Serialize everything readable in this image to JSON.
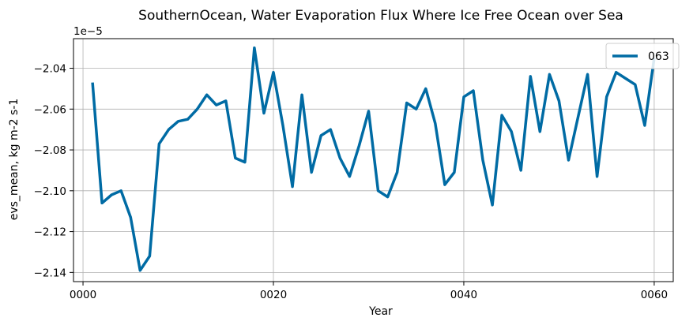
{
  "chart_data": {
    "type": "line",
    "title": "SouthernOcean, Water Evaporation Flux Where Ice Free Ocean over Sea",
    "xlabel": "Year",
    "ylabel": "evs_mean, kg m-2 s-1",
    "offset_label": "1e−5",
    "xlim": [
      -1,
      62
    ],
    "ylim": [
      -2.1445,
      -2.0255
    ],
    "x_ticks": [
      0,
      20,
      40,
      60
    ],
    "x_tick_labels": [
      "0000",
      "0020",
      "0040",
      "0060"
    ],
    "y_ticks": [
      -2.14,
      -2.12,
      -2.1,
      -2.08,
      -2.06,
      -2.04
    ],
    "y_tick_labels": [
      "−2.14",
      "−2.12",
      "−2.10",
      "−2.08",
      "−2.06",
      "−2.04"
    ],
    "grid": true,
    "legend_position": "top-right",
    "series": [
      {
        "name": "063",
        "color": "#006ba4",
        "x": [
          1,
          2,
          3,
          4,
          5,
          6,
          7,
          8,
          9,
          10,
          11,
          12,
          13,
          14,
          15,
          16,
          17,
          18,
          19,
          20,
          21,
          22,
          23,
          24,
          25,
          26,
          27,
          28,
          29,
          30,
          31,
          32,
          33,
          34,
          35,
          36,
          37,
          38,
          39,
          40,
          41,
          42,
          43,
          44,
          45,
          46,
          47,
          48,
          49,
          50,
          51,
          52,
          53,
          54,
          55,
          56,
          57,
          58,
          59,
          60
        ],
        "values": [
          -2.047,
          -2.106,
          -2.102,
          -2.1,
          -2.113,
          -2.139,
          -2.132,
          -2.077,
          -2.07,
          -2.066,
          -2.065,
          -2.06,
          -2.053,
          -2.058,
          -2.056,
          -2.084,
          -2.086,
          -2.03,
          -2.062,
          -2.042,
          -2.068,
          -2.098,
          -2.053,
          -2.091,
          -2.073,
          -2.07,
          -2.084,
          -2.093,
          -2.078,
          -2.061,
          -2.1,
          -2.103,
          -2.091,
          -2.057,
          -2.06,
          -2.05,
          -2.067,
          -2.097,
          -2.091,
          -2.054,
          -2.051,
          -2.085,
          -2.107,
          -2.063,
          -2.071,
          -2.09,
          -2.044,
          -2.071,
          -2.043,
          -2.056,
          -2.085,
          -2.064,
          -2.043,
          -2.093,
          -2.054,
          -2.042,
          -2.045,
          -2.048,
          -2.068,
          -2.035
        ]
      }
    ]
  }
}
